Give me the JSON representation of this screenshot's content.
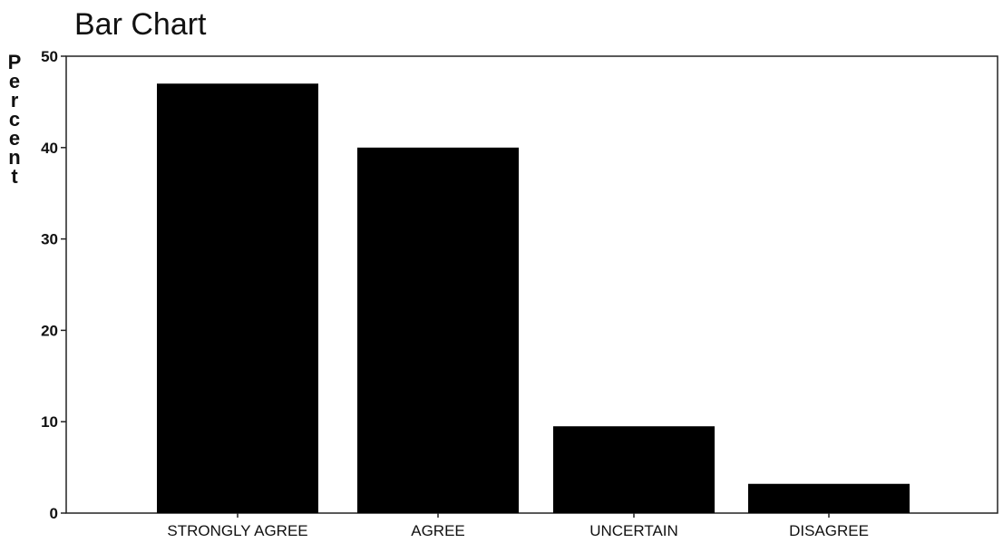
{
  "chart_data": {
    "type": "bar",
    "title": "Bar Chart",
    "xlabel": "",
    "ylabel": "Percent",
    "categories": [
      "STRONGLY AGREE",
      "AGREE",
      "UNCERTAIN",
      "DISAGREE"
    ],
    "values": [
      47,
      40,
      9.5,
      3.2
    ],
    "ylim": [
      0,
      50
    ],
    "yticks": [
      0,
      10,
      20,
      30,
      40,
      50
    ],
    "grid": false,
    "bar_color": "#000000"
  }
}
